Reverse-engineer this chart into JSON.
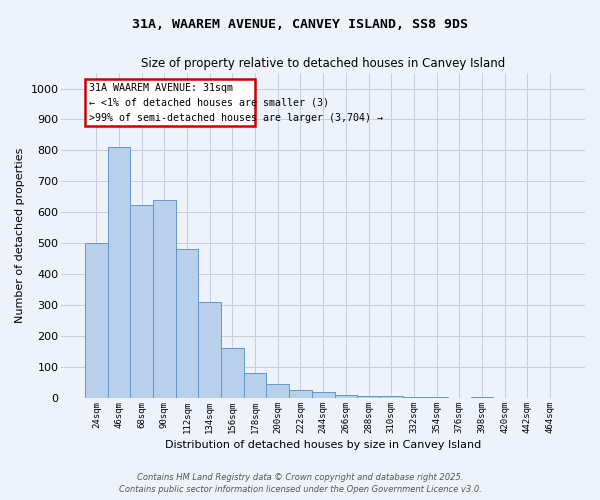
{
  "title_line1": "31A, WAAREM AVENUE, CANVEY ISLAND, SS8 9DS",
  "title_line2": "Size of property relative to detached houses in Canvey Island",
  "xlabel": "Distribution of detached houses by size in Canvey Island",
  "ylabel": "Number of detached properties",
  "categories": [
    "24sqm",
    "46sqm",
    "68sqm",
    "90sqm",
    "112sqm",
    "134sqm",
    "156sqm",
    "178sqm",
    "200sqm",
    "222sqm",
    "244sqm",
    "266sqm",
    "288sqm",
    "310sqm",
    "332sqm",
    "354sqm",
    "376sqm",
    "398sqm",
    "420sqm",
    "442sqm",
    "464sqm"
  ],
  "values": [
    500,
    810,
    625,
    640,
    480,
    310,
    163,
    80,
    45,
    25,
    18,
    10,
    8,
    5,
    3,
    2,
    1,
    4,
    0,
    0,
    0
  ],
  "bar_color": "#b8d0ea",
  "bar_edge_color": "#6098c8",
  "annotation_text": "31A WAAREM AVENUE: 31sqm\n← <1% of detached houses are smaller (3)\n>99% of semi-detached houses are larger (3,704) →",
  "box_color": "#cc0000",
  "ylim": [
    0,
    1050
  ],
  "yticks": [
    0,
    100,
    200,
    300,
    400,
    500,
    600,
    700,
    800,
    900,
    1000
  ],
  "footer_line1": "Contains HM Land Registry data © Crown copyright and database right 2025.",
  "footer_line2": "Contains public sector information licensed under the Open Government Licence v3.0.",
  "bg_color": "#eef2fb",
  "grid_color": "#c5cde0"
}
